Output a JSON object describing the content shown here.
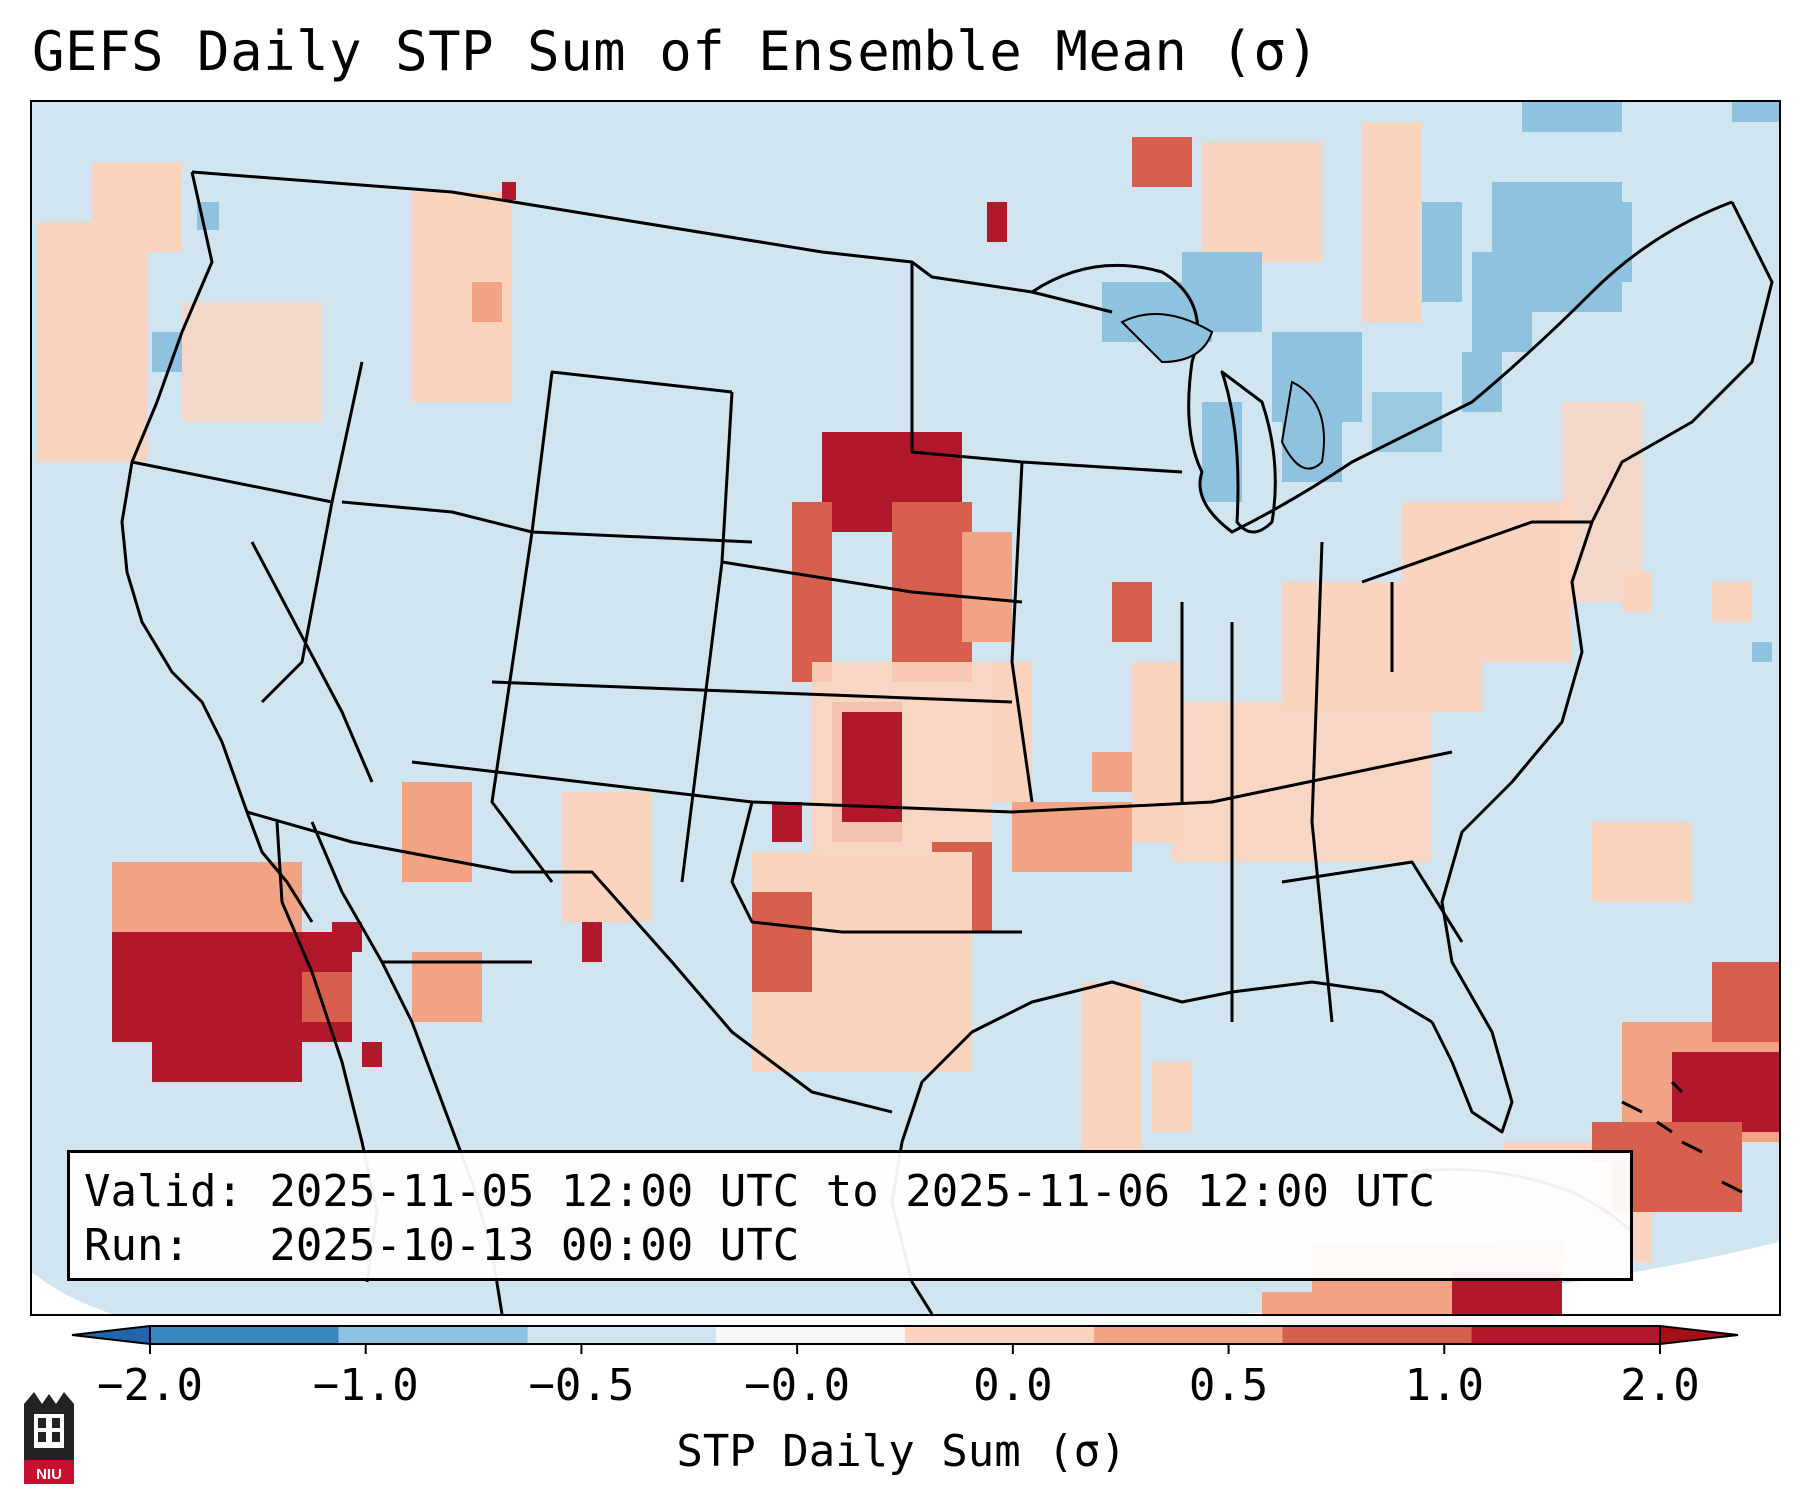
{
  "title": "GEFS Daily STP Sum of Ensemble Mean (σ)",
  "info": {
    "valid_line": "Valid: 2025-11-05 12:00 UTC to 2025-11-06 12:00 UTC",
    "run_line": "Run:   2025-10-13 00:00 UTC"
  },
  "colorbar": {
    "label": "STP Daily Sum (σ)",
    "ticks": [
      "−2.0",
      "−1.0",
      "−0.5",
      "−0.0",
      "0.0",
      "0.5",
      "1.0",
      "2.0"
    ],
    "colors": [
      "#3a87c0",
      "#8fc2de",
      "#d1e5f0",
      "#f7f7f7",
      "#fbd4bf",
      "#f1a384",
      "#d6604d",
      "#b2182b"
    ],
    "extend": "both"
  },
  "map": {
    "projection": "Lambert conformal, CONUS",
    "background_color": "#d1e5f0",
    "anomaly_regions": [
      {
        "region": "Baja / SW Arizona",
        "sigma": 2.0
      },
      {
        "region": "Nebraska / South Dakota",
        "sigma": 2.0
      },
      {
        "region": "Kansas / Oklahoma",
        "sigma": 1.5
      },
      {
        "region": "Bahamas",
        "sigma": 2.0
      },
      {
        "region": "Great Lakes",
        "sigma": -1.0
      },
      {
        "region": "New England / Quebec",
        "sigma": -1.0
      }
    ]
  },
  "logo": {
    "text": "NIU"
  }
}
